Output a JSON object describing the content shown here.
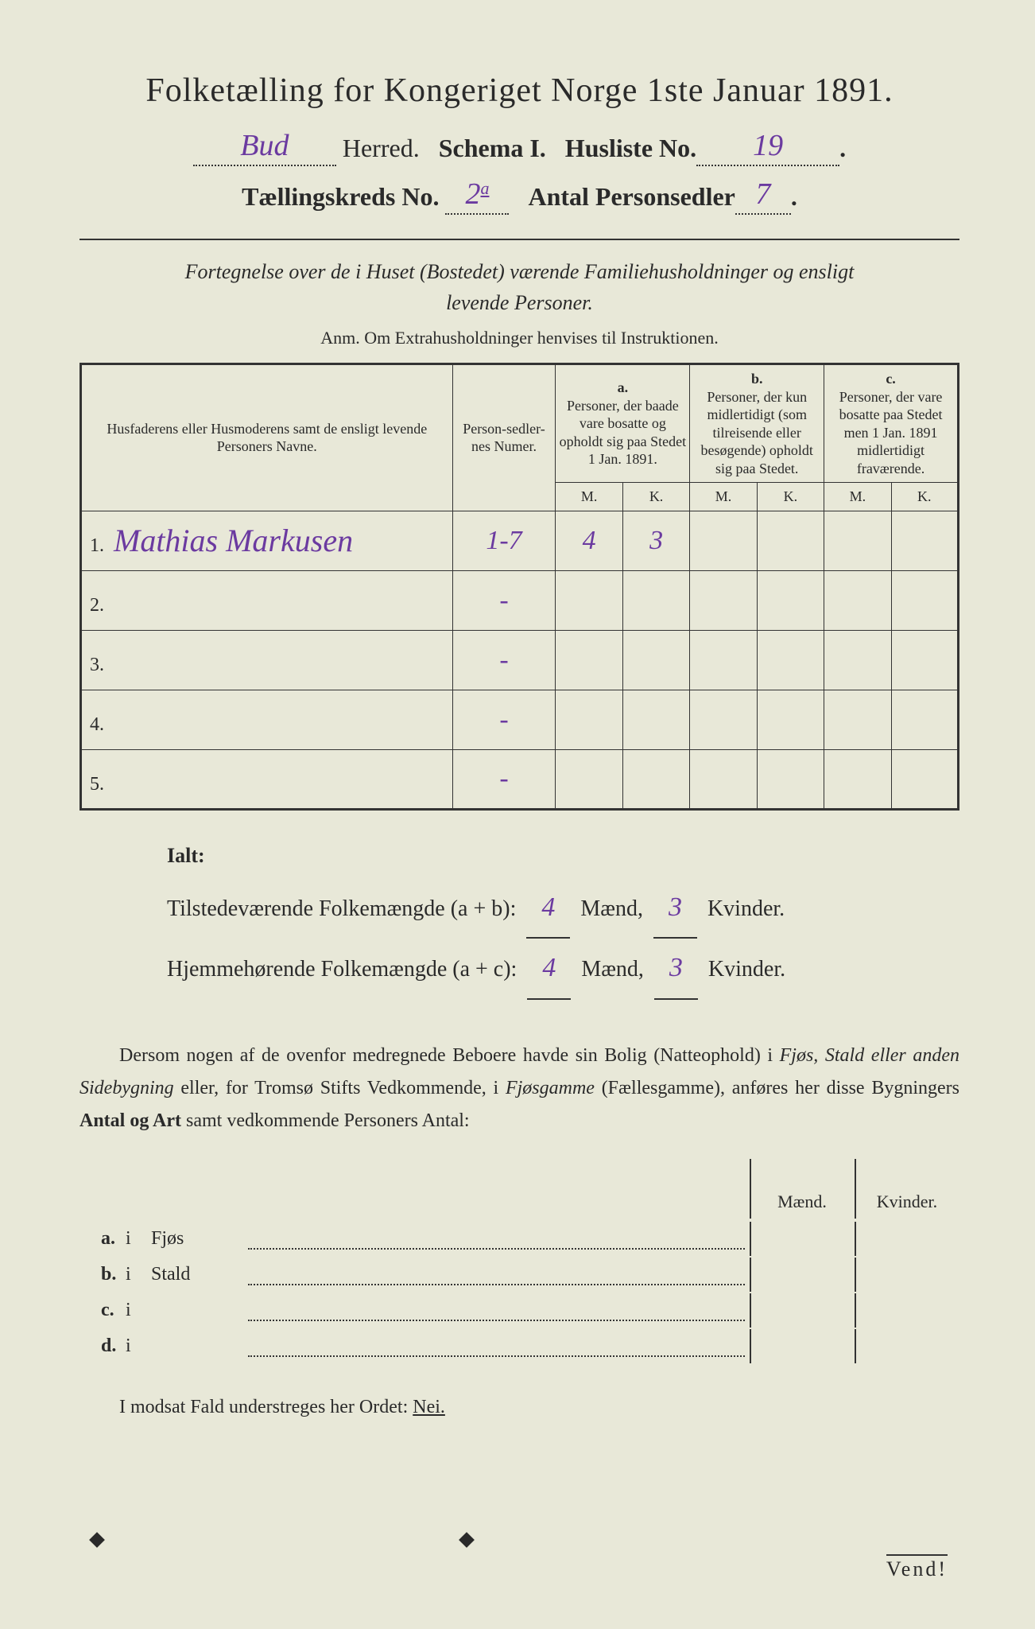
{
  "title": "Folketælling for Kongeriget Norge 1ste Januar 1891.",
  "header": {
    "herred_value": "Bud",
    "herred_label": "Herred.",
    "schema_label": "Schema I.",
    "husliste_label": "Husliste No.",
    "husliste_value": "19",
    "kreds_label": "Tællingskreds No.",
    "kreds_value": "2",
    "kreds_sup": "a",
    "antal_label": "Antal Personsedler",
    "antal_value": "7"
  },
  "fortegnelse_line1": "Fortegnelse over de i Huset (Bostedet) værende Familiehusholdninger og ensligt",
  "fortegnelse_line2": "levende Personer.",
  "anm": "Anm. Om Extrahusholdninger henvises til Instruktionen.",
  "table": {
    "head_names": "Husfaderens eller Husmoderens samt de ensligt levende Personers Navne.",
    "head_num": "Person-sedler-nes Numer.",
    "head_a_top": "a.",
    "head_a": "Personer, der baade vare bosatte og opholdt sig paa Stedet 1 Jan. 1891.",
    "head_b_top": "b.",
    "head_b": "Personer, der kun midlertidigt (som tilreisende eller besøgende) opholdt sig paa Stedet.",
    "head_c_top": "c.",
    "head_c": "Personer, der vare bosatte paa Stedet men 1 Jan. 1891 midlertidigt fraværende.",
    "m": "M.",
    "k": "K.",
    "rows": [
      {
        "idx": "1.",
        "name": "Mathias Markusen",
        "num": "1-7",
        "a_m": "4",
        "a_k": "3",
        "b_m": "",
        "b_k": "",
        "c_m": "",
        "c_k": ""
      },
      {
        "idx": "2.",
        "name": "",
        "num": "-",
        "a_m": "",
        "a_k": "",
        "b_m": "",
        "b_k": "",
        "c_m": "",
        "c_k": ""
      },
      {
        "idx": "3.",
        "name": "",
        "num": "-",
        "a_m": "",
        "a_k": "",
        "b_m": "",
        "b_k": "",
        "c_m": "",
        "c_k": ""
      },
      {
        "idx": "4.",
        "name": "",
        "num": "-",
        "a_m": "",
        "a_k": "",
        "b_m": "",
        "b_k": "",
        "c_m": "",
        "c_k": ""
      },
      {
        "idx": "5.",
        "name": "",
        "num": "-",
        "a_m": "",
        "a_k": "",
        "b_m": "",
        "b_k": "",
        "c_m": "",
        "c_k": ""
      }
    ]
  },
  "ialt": {
    "ialt_label": "Ialt:",
    "line1_pre": "Tilstedeværende Folkemængde (a + b):",
    "line2_pre": "Hjemmehørende Folkemængde (a + c):",
    "maend": "Mænd,",
    "kvinder": "Kvinder.",
    "ab_m": "4",
    "ab_k": "3",
    "ac_m": "4",
    "ac_k": "3"
  },
  "para": "Dersom nogen af de ovenfor medregnede Beboere havde sin Bolig (Natteophold) i Fjøs, Stald eller anden Sidebygning eller, for Tromsø Stifts Vedkommende, i Fjøsgamme (Fællesgamme), anføres her disse Bygningers Antal og Art samt vedkommende Personers Antal:",
  "bygning": {
    "maend": "Mænd.",
    "kvinder": "Kvinder.",
    "rows": [
      {
        "lab": "a.",
        "i": "i",
        "typ": "Fjøs"
      },
      {
        "lab": "b.",
        "i": "i",
        "typ": "Stald"
      },
      {
        "lab": "c.",
        "i": "i",
        "typ": ""
      },
      {
        "lab": "d.",
        "i": "i",
        "typ": ""
      }
    ]
  },
  "modsat": "I modsat Fald understreges her Ordet:",
  "nei": "Nei.",
  "vend": "Vend!"
}
